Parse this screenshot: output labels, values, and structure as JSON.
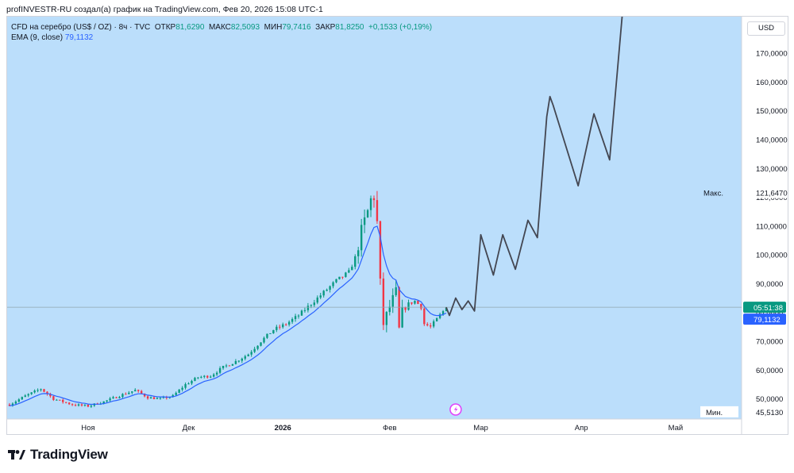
{
  "header": {
    "attribution": "profINVESTR-RU создал(а) график на TradingView.com, Фев 20, 2026 15:08 UTC-1"
  },
  "legend": {
    "symbol": "CFD на серебро (US$ / OZ) · 8ч · TVC",
    "open_label": "ОТКР",
    "open": "81,6290",
    "high_label": "МАКС",
    "high": "82,5093",
    "low_label": "МИН",
    "low": "79,7416",
    "close_label": "ЗАКР",
    "close": "81,8250",
    "change": "+0,1533 (+0,19%)",
    "ema_label": "EMA (9, close)",
    "ema_value": "79,1132"
  },
  "currency": "USD",
  "price_markers": {
    "max_label": "Макс.",
    "max_value": "121,6470",
    "min_label": "Мин.",
    "min_value": "45,5130",
    "countdown": "05:51:38",
    "last_ema": "79,1132"
  },
  "brand": {
    "name": "TradingView"
  },
  "colors": {
    "background": "#bbdefb",
    "up": "#089981",
    "down": "#f23645",
    "ema": "#2962ff",
    "forecast": "#434651",
    "current_line": "#90a4ae"
  },
  "chart_data": {
    "type": "candlestick",
    "title": "CFD на серебро (US$ / OZ) · 8ч · TVC",
    "y_axis": {
      "min": 43,
      "max": 183,
      "ticks": [
        "50,0000",
        "60,0000",
        "70,0000",
        "80,0000",
        "90,0000",
        "100,0000",
        "110,0000",
        "120,0000",
        "130,0000",
        "140,0000",
        "150,0000",
        "160,0000",
        "170,0000"
      ],
      "tick_values": [
        50,
        60,
        70,
        80,
        90,
        100,
        110,
        120,
        130,
        140,
        150,
        160,
        170
      ]
    },
    "x_axis": {
      "labels": [
        "Ноя",
        "Дек",
        "2026",
        "Фев",
        "Мар",
        "Апр",
        "Май"
      ],
      "label_index": [
        25,
        57,
        87,
        121,
        150,
        182,
        212
      ],
      "bold": [
        false,
        false,
        true,
        false,
        false,
        false,
        false
      ],
      "domain": [
        -1,
        233
      ]
    },
    "last_price": 81.825,
    "max_price": 121.647,
    "min_price": 45.513,
    "price_anchors": [
      [
        0,
        48
      ],
      [
        5,
        51
      ],
      [
        10,
        53.5
      ],
      [
        14,
        50
      ],
      [
        20,
        48
      ],
      [
        25,
        47.5
      ],
      [
        30,
        49
      ],
      [
        36,
        51.5
      ],
      [
        40,
        53
      ],
      [
        44,
        50.5
      ],
      [
        48,
        50
      ],
      [
        52,
        51
      ],
      [
        56,
        55
      ],
      [
        60,
        57.5
      ],
      [
        64,
        58
      ],
      [
        68,
        61
      ],
      [
        72,
        63
      ],
      [
        76,
        65.5
      ],
      [
        80,
        70
      ],
      [
        84,
        74
      ],
      [
        88,
        76
      ],
      [
        92,
        79
      ],
      [
        96,
        83
      ],
      [
        100,
        87
      ],
      [
        104,
        91
      ],
      [
        108,
        94
      ],
      [
        110,
        99
      ],
      [
        112,
        108
      ],
      [
        114,
        115
      ],
      [
        115,
        119
      ],
      [
        116,
        120.5
      ],
      [
        117,
        111
      ],
      [
        118,
        90
      ],
      [
        119,
        76
      ],
      [
        121,
        82
      ],
      [
        123,
        87
      ],
      [
        124,
        74
      ],
      [
        125,
        80
      ],
      [
        127,
        83
      ],
      [
        129,
        84
      ],
      [
        131,
        82
      ],
      [
        132,
        76
      ],
      [
        134,
        75
      ],
      [
        137,
        79
      ],
      [
        139,
        81.8
      ]
    ],
    "forecast_path": [
      [
        139,
        81.8
      ],
      [
        140,
        79
      ],
      [
        142,
        85
      ],
      [
        144,
        81
      ],
      [
        146,
        84
      ],
      [
        148,
        80.5
      ],
      [
        150,
        107
      ],
      [
        154,
        93
      ],
      [
        157,
        107
      ],
      [
        161,
        95
      ],
      [
        165,
        112
      ],
      [
        168,
        106
      ],
      [
        171,
        148
      ],
      [
        172,
        155
      ],
      [
        173,
        152
      ],
      [
        181,
        124
      ],
      [
        186,
        149
      ],
      [
        191,
        133
      ],
      [
        195,
        183
      ]
    ],
    "ema_period": 9
  }
}
